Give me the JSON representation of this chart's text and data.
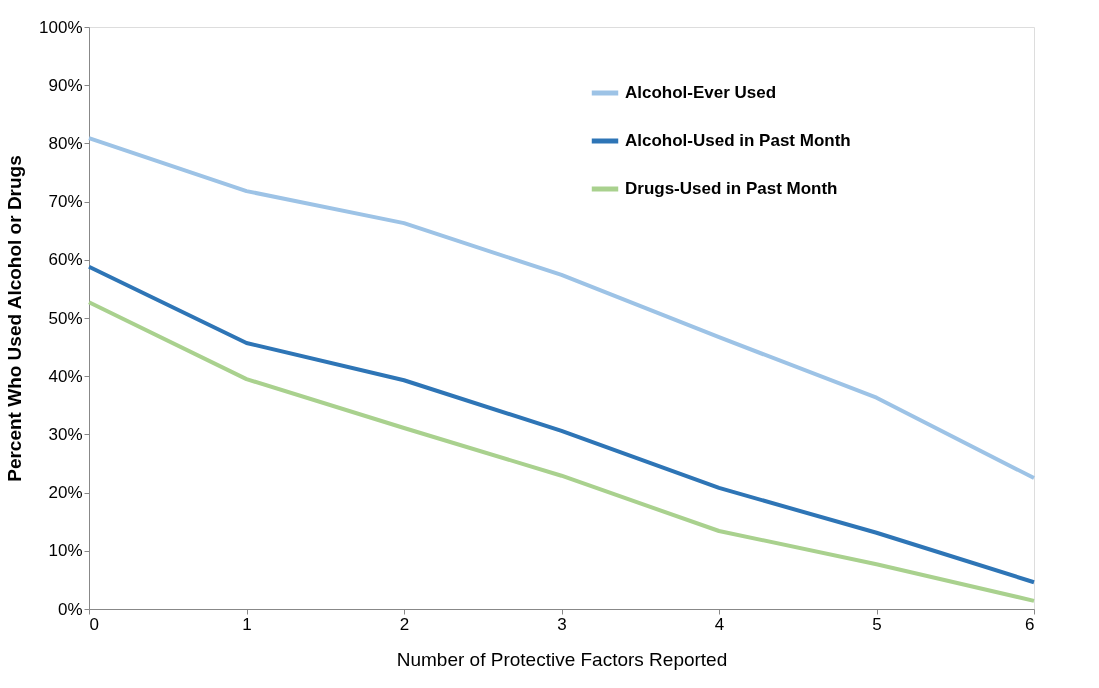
{
  "chart_data": {
    "type": "line",
    "xlabel": "Number of Protective Factors Reported",
    "ylabel": "Percent Who Used Alcohol or Drugs",
    "x": [
      0,
      1,
      2,
      3,
      4,
      5,
      6
    ],
    "series": [
      {
        "name": "Alcohol-Ever Used",
        "color": "#9dc3e6",
        "values": [
          80.9,
          71.8,
          66.3,
          57.4,
          46.7,
          36.3,
          22.5
        ]
      },
      {
        "name": "Alcohol-Used in Past Month",
        "color": "#2e75b6",
        "values": [
          58.8,
          45.7,
          39.3,
          30.6,
          20.8,
          13.1,
          4.6
        ]
      },
      {
        "name": "Drugs-Used in Past Month",
        "color": "#a9d18e",
        "values": [
          52.7,
          39.5,
          31.1,
          22.9,
          13.4,
          7.7,
          1.4
        ]
      }
    ],
    "xlim": [
      0,
      6
    ],
    "xticks": [
      0,
      1,
      2,
      3,
      4,
      5,
      6
    ],
    "ylim": [
      0,
      100
    ],
    "yticks": [
      {
        "value": 0,
        "label": "0%"
      },
      {
        "value": 10,
        "label": "10%"
      },
      {
        "value": 20,
        "label": "20%"
      },
      {
        "value": 30,
        "label": "30%"
      },
      {
        "value": 40,
        "label": "40%"
      },
      {
        "value": 50,
        "label": "50%"
      },
      {
        "value": 60,
        "label": "60%"
      },
      {
        "value": 70,
        "label": "70%"
      },
      {
        "value": 80,
        "label": "80%"
      },
      {
        "value": 90,
        "label": "90%"
      },
      {
        "value": 100,
        "label": "100%"
      }
    ],
    "grid": false,
    "legend": "top right",
    "marker": "none",
    "line_style": "solid"
  }
}
